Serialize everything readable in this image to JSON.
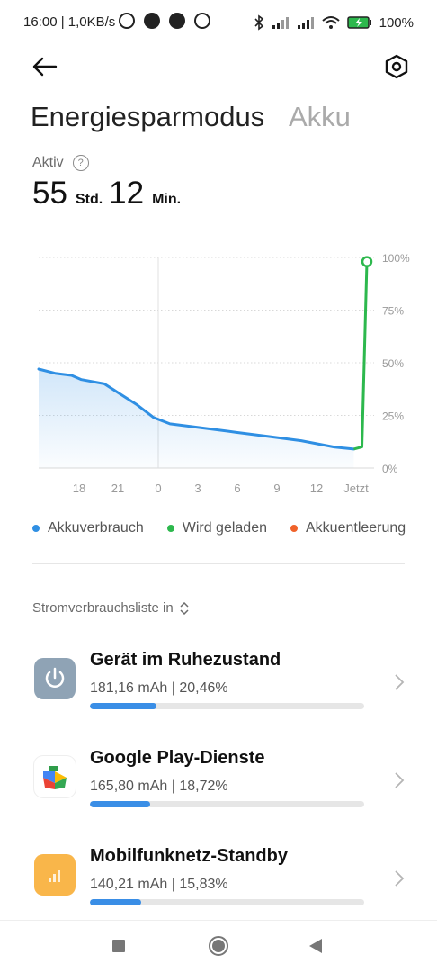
{
  "status_bar": {
    "time_speed": "16:00 | 1,0KB/s",
    "battery_percent": "100%",
    "icons": [
      "alarm-icon",
      "facebook-icon",
      "facebook-icon",
      "fitness-icon",
      "bluetooth-icon",
      "signal-icon",
      "signal-icon",
      "wifi-icon",
      "battery-charging-icon"
    ]
  },
  "header": {
    "title": "Energiesparmodus",
    "second_tab": "Akku"
  },
  "summary": {
    "label": "Aktiv",
    "help": "?",
    "hours": "55",
    "hours_unit": "Std.",
    "minutes": "12",
    "minutes_unit": "Min."
  },
  "chart_data": {
    "type": "line",
    "x_ticks": [
      "18",
      "21",
      "0",
      "3",
      "6",
      "9",
      "12",
      "Jetzt"
    ],
    "y_ticks": [
      "100%",
      "75%",
      "50%",
      "25%",
      "0%"
    ],
    "ylim": [
      0,
      100
    ],
    "grid": true,
    "series": [
      {
        "name": "Akkuverbrauch",
        "color": "#2f8fe3",
        "points": [
          [
            0,
            47
          ],
          [
            0.5,
            45
          ],
          [
            1,
            44
          ],
          [
            1.3,
            42
          ],
          [
            2,
            40
          ],
          [
            2.5,
            35
          ],
          [
            3,
            30
          ],
          [
            3.5,
            24
          ],
          [
            4,
            21
          ],
          [
            5,
            19
          ],
          [
            6,
            17
          ],
          [
            7,
            15
          ],
          [
            8,
            13
          ],
          [
            9,
            10
          ],
          [
            9.6,
            9
          ]
        ]
      },
      {
        "name": "Wird geladen",
        "color": "#2db84d",
        "points": [
          [
            9.6,
            9
          ],
          [
            9.85,
            10
          ],
          [
            10,
            98
          ]
        ]
      }
    ],
    "legend": [
      {
        "label": "Akkuverbrauch",
        "color": "#2f8fe3"
      },
      {
        "label": "Wird geladen",
        "color": "#2db84d"
      },
      {
        "label": "Akkuentleerung",
        "color": "#f0622a"
      }
    ]
  },
  "list": {
    "label": "Stromverbrauchsliste in",
    "items": [
      {
        "name": "Gerät im Ruhezustand",
        "value": "181,16 mAh | 20,46%",
        "fraction": 0.2046,
        "icon": "power-icon",
        "icon_color": "#8fa3b5"
      },
      {
        "name": "Google Play-Dienste",
        "value": "165,80 mAh | 18,72%",
        "fraction": 0.1872,
        "icon": "google-play-services-icon",
        "icon_color": "#ffffff"
      },
      {
        "name": "Mobilfunknetz-Standby",
        "value": "140,21 mAh | 15,83%",
        "fraction": 0.1583,
        "icon": "cellular-icon",
        "icon_color": "#f9b64a"
      }
    ]
  }
}
